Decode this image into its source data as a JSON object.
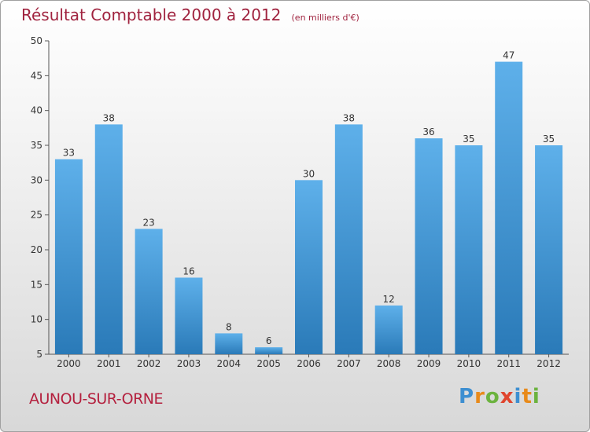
{
  "header": {
    "title": "Résultat Comptable 2000 à 2012",
    "unit_note": "(en milliers d'€)"
  },
  "footer": {
    "town": "AUNOU-SUR-ORNE",
    "logo": "Proxiti"
  },
  "colors": {
    "bar_top": "#5eb0ea",
    "bar_bottom": "#2a7ab8",
    "title": "#a0233f"
  },
  "chart_data": {
    "type": "bar",
    "title": "Résultat Comptable 2000 à 2012",
    "subtitle": "(en milliers d'€)",
    "categories": [
      "2000",
      "2001",
      "2002",
      "2003",
      "2004",
      "2005",
      "2006",
      "2007",
      "2008",
      "2009",
      "2010",
      "2011",
      "2012"
    ],
    "values": [
      33,
      38,
      23,
      16,
      8,
      6,
      30,
      38,
      12,
      36,
      35,
      47,
      35
    ],
    "ylim": [
      5,
      50
    ],
    "yticks": [
      5,
      10,
      15,
      20,
      25,
      30,
      35,
      40,
      45,
      50
    ],
    "xlabel": "",
    "ylabel": "",
    "grid": false
  }
}
